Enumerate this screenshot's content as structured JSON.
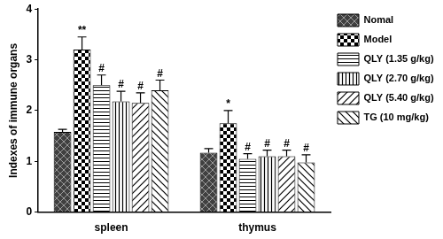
{
  "chart_data": {
    "type": "bar",
    "y_label": "Indexes of immune organs",
    "categories": [
      "spleen",
      "thymus"
    ],
    "series": [
      {
        "name": "Nomal",
        "color": "#404040",
        "values": [
          1.58,
          1.17
        ],
        "errors": [
          0.05,
          0.08
        ],
        "annotations": [
          null,
          null
        ]
      },
      {
        "name": "Model",
        "color": "#000000",
        "values": [
          3.2,
          1.75
        ],
        "errors": [
          0.25,
          0.25
        ],
        "annotations": [
          "**",
          "*"
        ]
      },
      {
        "name": "QLY (1.35 g/kg)",
        "color": "#000000",
        "values": [
          2.5,
          1.05
        ],
        "errors": [
          0.2,
          0.1
        ],
        "annotations": [
          "#",
          "#"
        ]
      },
      {
        "name": "QLY (2.70 g/kg)",
        "color": "#000000",
        "values": [
          2.18,
          1.1
        ],
        "errors": [
          0.2,
          0.12
        ],
        "annotations": [
          "#",
          "#"
        ]
      },
      {
        "name": "QLY (5.40 g/kg)",
        "color": "#000000",
        "values": [
          2.15,
          1.1
        ],
        "errors": [
          0.2,
          0.12
        ],
        "annotations": [
          "#",
          "#"
        ]
      },
      {
        "name": "TG (10 mg/kg)",
        "color": "#000000",
        "values": [
          2.4,
          0.98
        ],
        "errors": [
          0.2,
          0.15
        ],
        "annotations": [
          "#",
          "#"
        ]
      }
    ],
    "ylim": [
      0,
      4
    ],
    "yticks": [
      0,
      1,
      2,
      3,
      4
    ],
    "grid": false,
    "legend": "right"
  }
}
